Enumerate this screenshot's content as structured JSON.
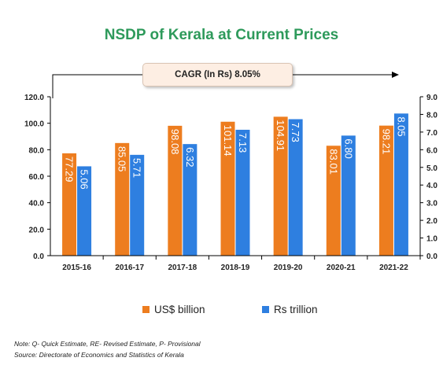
{
  "title": "NSDP of Kerala at Current Prices",
  "cagr_label": "CAGR  (In Rs) 8.05%",
  "colors": {
    "usd": "#ed7d1f",
    "rs": "#2e7fe0",
    "title": "#2e9a5b"
  },
  "legend": {
    "usd": "US$ billion",
    "rs": "Rs trillion"
  },
  "notes": {
    "note": "Note: Q- Quick Estimate, RE- Revised Estimate, P- Provisional",
    "source": "Source: Directorate of Economics and Statistics of Kerala"
  },
  "chart_data": {
    "type": "bar",
    "categories": [
      "2015-16",
      "2016-17",
      "2017-18",
      "2018-19",
      "2019-20",
      "2020-21",
      "2021-22"
    ],
    "series": [
      {
        "name": "US$ billion",
        "axis": "left",
        "values": [
          77.29,
          85.05,
          98.08,
          101.14,
          104.91,
          83.01,
          98.21
        ],
        "labels": [
          "77.29",
          "85.05",
          "98.08",
          "101.14",
          "104.91",
          "83.01",
          "98.21"
        ]
      },
      {
        "name": "Rs trillion",
        "axis": "right",
        "values": [
          5.06,
          5.71,
          6.32,
          7.13,
          7.73,
          6.8,
          8.05
        ],
        "labels": [
          "5.06",
          "5.71",
          "6.32",
          "7.13",
          "7.73",
          "6.80",
          "8.05"
        ]
      }
    ],
    "ylim_left": [
      0,
      120
    ],
    "ylim_right": [
      0,
      9
    ],
    "left_ticks": [
      "0.0",
      "20.0",
      "40.0",
      "60.0",
      "80.0",
      "100.0",
      "120.0"
    ],
    "right_ticks": [
      "0.0",
      "1.0",
      "2.0",
      "3.0",
      "4.0",
      "5.0",
      "6.0",
      "7.0",
      "8.0",
      "9.0"
    ],
    "grid": false,
    "legend_position": "bottom"
  }
}
